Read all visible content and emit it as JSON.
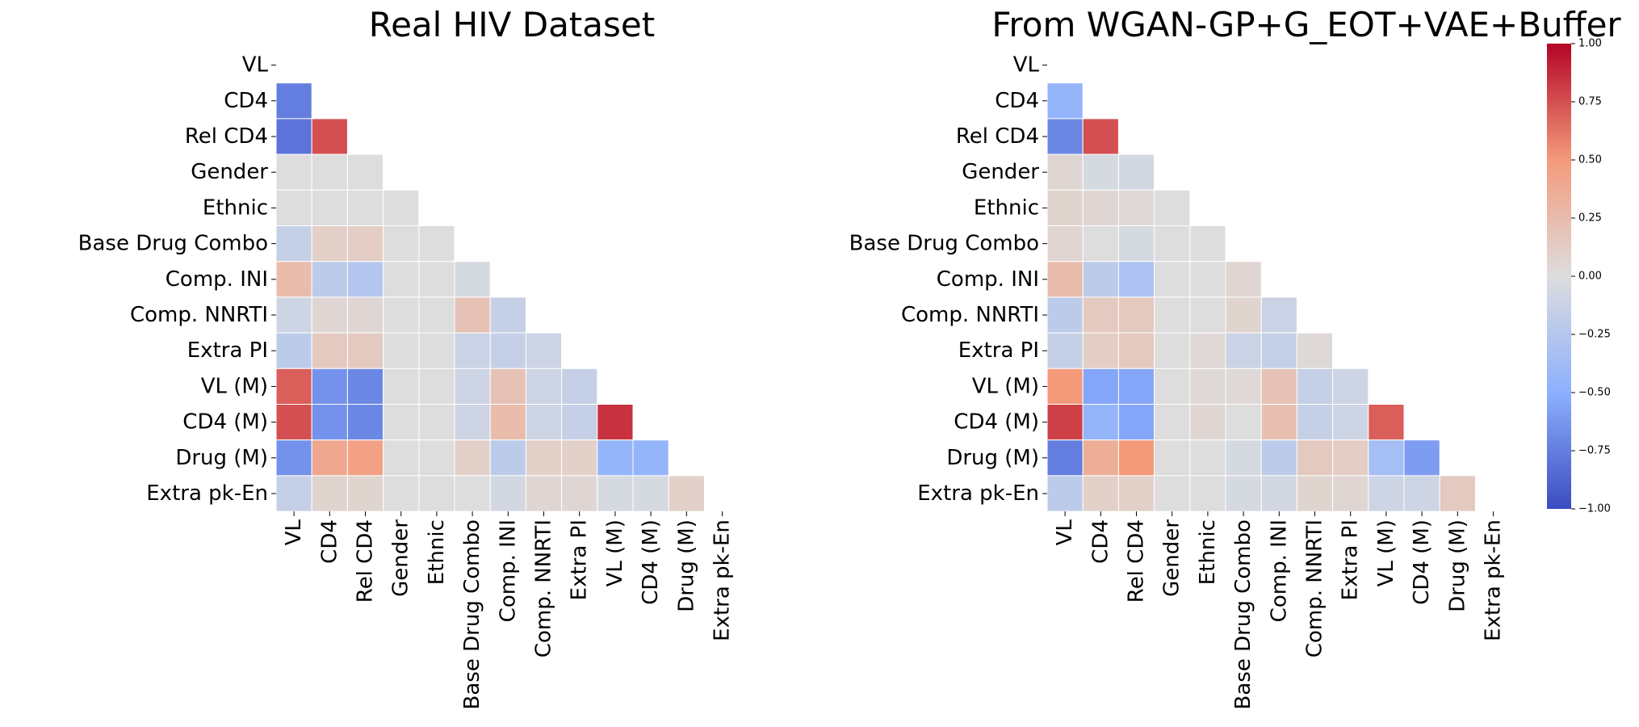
{
  "chart_data": [
    {
      "type": "heatmap",
      "title": "Real HIV Dataset",
      "labels": [
        "VL",
        "CD4",
        "Rel CD4",
        "Gender",
        "Ethnic",
        "Base Drug Combo",
        "Comp. INI",
        "Comp. NNRTI",
        "Extra PI",
        "VL (M)",
        "CD4 (M)",
        "Drug (M)",
        "Extra pk-En"
      ],
      "mask": "upper-triangle-including-diagonal",
      "values": [
        [],
        [
          -0.75
        ],
        [
          -0.8,
          0.75
        ],
        [
          0.0,
          0.0,
          0.0
        ],
        [
          0.0,
          0.0,
          0.0,
          0.0
        ],
        [
          -0.15,
          0.1,
          0.12,
          0.0,
          0.0
        ],
        [
          0.25,
          -0.2,
          -0.25,
          0.0,
          0.0,
          -0.05
        ],
        [
          -0.1,
          0.05,
          0.05,
          0.0,
          0.0,
          0.2,
          -0.15
        ],
        [
          -0.2,
          0.15,
          0.15,
          0.0,
          0.0,
          -0.12,
          -0.15,
          -0.1
        ],
        [
          0.7,
          -0.65,
          -0.7,
          0.0,
          0.0,
          -0.1,
          0.2,
          -0.1,
          -0.15
        ],
        [
          0.75,
          -0.65,
          -0.7,
          0.0,
          0.0,
          -0.1,
          0.25,
          -0.1,
          -0.15,
          0.85
        ],
        [
          -0.65,
          0.4,
          0.45,
          0.0,
          0.0,
          0.1,
          -0.2,
          0.1,
          0.1,
          -0.45,
          -0.45
        ],
        [
          -0.15,
          0.07,
          0.07,
          0.0,
          0.0,
          0.0,
          -0.07,
          0.05,
          0.05,
          -0.05,
          -0.05,
          0.1
        ]
      ]
    },
    {
      "type": "heatmap",
      "title": "From WGAN-GP+G_EOT+VAE+Buffer",
      "labels": [
        "VL",
        "CD4",
        "Rel CD4",
        "Gender",
        "Ethnic",
        "Base Drug Combo",
        "Comp. INI",
        "Comp. NNRTI",
        "Extra PI",
        "VL (M)",
        "CD4 (M)",
        "Drug (M)",
        "Extra pk-En"
      ],
      "mask": "upper-triangle-including-diagonal",
      "values": [
        [],
        [
          -0.45
        ],
        [
          -0.7,
          0.75
        ],
        [
          0.05,
          -0.05,
          -0.07
        ],
        [
          0.07,
          0.05,
          0.03,
          0.0
        ],
        [
          0.06,
          0.0,
          -0.05,
          0.0,
          0.0
        ],
        [
          0.25,
          -0.2,
          -0.3,
          0.0,
          0.0,
          0.05
        ],
        [
          -0.2,
          0.15,
          0.15,
          0.0,
          0.0,
          0.07,
          -0.12
        ],
        [
          -0.15,
          0.12,
          0.15,
          0.0,
          0.03,
          -0.12,
          -0.15,
          0.03
        ],
        [
          0.5,
          -0.55,
          -0.55,
          0.0,
          0.03,
          0.03,
          0.2,
          -0.15,
          -0.1
        ],
        [
          0.8,
          -0.45,
          -0.55,
          0.0,
          0.05,
          0.0,
          0.22,
          -0.15,
          -0.1,
          0.7
        ],
        [
          -0.75,
          0.35,
          0.5,
          0.0,
          0.0,
          -0.05,
          -0.2,
          0.15,
          0.12,
          -0.35,
          -0.6
        ],
        [
          -0.2,
          0.1,
          0.1,
          0.0,
          0.0,
          -0.05,
          -0.07,
          0.07,
          0.05,
          -0.1,
          -0.1,
          0.15
        ]
      ]
    }
  ],
  "colorbar": {
    "colormap": "coolwarm",
    "range": [
      -1.0,
      1.0
    ],
    "ticks": [
      "1.00",
      "0.75",
      "0.50",
      "0.25",
      "0.00",
      "−0.25",
      "−0.50",
      "−0.75",
      "−1.00"
    ]
  }
}
